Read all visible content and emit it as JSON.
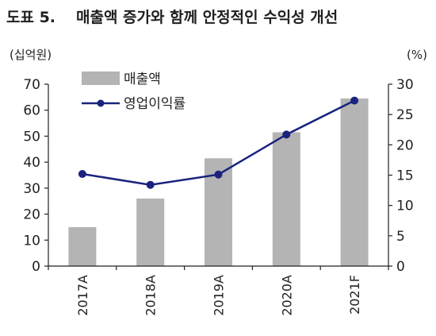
{
  "header": {
    "figure_label": "도표 5.",
    "title": "매출액 증가와 함께 안정적인 수익성 개선"
  },
  "chart_data": {
    "type": "bar+line",
    "categories": [
      "2017A",
      "2018A",
      "2019A",
      "2020A",
      "2021F"
    ],
    "series": [
      {
        "name": "매출액",
        "type": "bar",
        "axis": "left",
        "values": [
          15,
          26,
          41.5,
          51.5,
          64.5
        ],
        "color": "#b4b4b4"
      },
      {
        "name": "영업이익률",
        "type": "line",
        "axis": "right",
        "values": [
          15.2,
          13.4,
          15.1,
          21.7,
          27.3
        ],
        "color": "#1a237e"
      }
    ],
    "y_left": {
      "unit_label": "(십억원)",
      "range": [
        0,
        70
      ],
      "ticks": [
        0,
        10,
        20,
        30,
        40,
        50,
        60,
        70
      ]
    },
    "y_right": {
      "unit_label": "(%)",
      "range": [
        0,
        30
      ],
      "ticks": [
        0,
        5,
        10,
        15,
        20,
        25,
        30
      ]
    },
    "legend": {
      "placement": "top-left"
    },
    "grid": false
  }
}
